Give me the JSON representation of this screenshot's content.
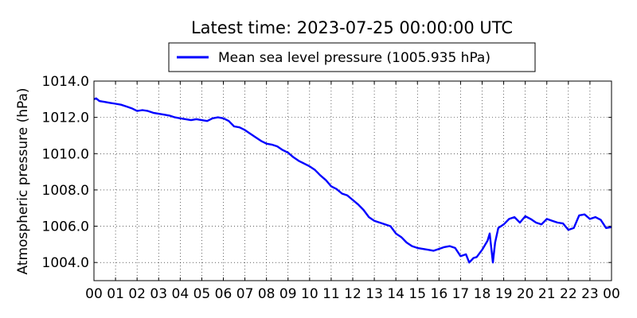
{
  "chart_data": {
    "type": "line",
    "title": "Latest time: 2023-07-25 00:00:00 UTC",
    "xlabel": "",
    "ylabel": "Atmospheric pressure (hPa)",
    "x_unit": "hour",
    "xlim": [
      0,
      24
    ],
    "ylim": [
      1003.0,
      1014.0
    ],
    "grid": true,
    "grid_style": "dotted",
    "legend_position": "top-center",
    "x_tick_labels": [
      "00",
      "01",
      "02",
      "03",
      "04",
      "05",
      "06",
      "07",
      "08",
      "09",
      "10",
      "11",
      "12",
      "13",
      "14",
      "15",
      "16",
      "17",
      "18",
      "19",
      "20",
      "21",
      "22",
      "23",
      "00"
    ],
    "y_ticks": [
      1004.0,
      1006.0,
      1008.0,
      1010.0,
      1012.0,
      1014.0
    ],
    "y_tick_labels": [
      "1004.0",
      "1006.0",
      "1008.0",
      "1010.0",
      "1012.0",
      "1014.0"
    ],
    "series": [
      {
        "name": "Mean sea level pressure (1005.935 hPa)",
        "color": "#0000ff",
        "x": [
          0.0,
          0.1,
          0.25,
          0.5,
          0.75,
          1.0,
          1.25,
          1.5,
          1.75,
          2.0,
          2.25,
          2.5,
          2.75,
          3.0,
          3.25,
          3.5,
          3.75,
          4.0,
          4.25,
          4.5,
          4.75,
          5.0,
          5.25,
          5.5,
          5.75,
          6.0,
          6.25,
          6.5,
          6.75,
          7.0,
          7.25,
          7.5,
          7.75,
          8.0,
          8.25,
          8.5,
          8.75,
          9.0,
          9.25,
          9.5,
          9.75,
          10.0,
          10.25,
          10.5,
          10.75,
          11.0,
          11.25,
          11.5,
          11.75,
          12.0,
          12.25,
          12.5,
          12.75,
          13.0,
          13.25,
          13.5,
          13.75,
          14.0,
          14.25,
          14.5,
          14.75,
          15.0,
          15.25,
          15.5,
          15.75,
          16.0,
          16.25,
          16.5,
          16.75,
          17.0,
          17.25,
          17.4,
          17.6,
          17.75,
          18.0,
          18.25,
          18.35,
          18.5,
          18.6,
          18.75,
          19.0,
          19.25,
          19.5,
          19.75,
          20.0,
          20.25,
          20.5,
          20.75,
          21.0,
          21.25,
          21.5,
          21.75,
          22.0,
          22.25,
          22.5,
          22.75,
          23.0,
          23.25,
          23.5,
          23.75,
          24.0
        ],
        "y": [
          1013.0,
          1013.05,
          1012.9,
          1012.85,
          1012.8,
          1012.75,
          1012.7,
          1012.6,
          1012.5,
          1012.35,
          1012.4,
          1012.35,
          1012.25,
          1012.2,
          1012.15,
          1012.1,
          1012.0,
          1011.95,
          1011.9,
          1011.85,
          1011.9,
          1011.85,
          1011.8,
          1011.95,
          1012.0,
          1011.95,
          1011.8,
          1011.5,
          1011.45,
          1011.3,
          1011.1,
          1010.9,
          1010.7,
          1010.55,
          1010.5,
          1010.4,
          1010.2,
          1010.05,
          1009.8,
          1009.6,
          1009.45,
          1009.3,
          1009.1,
          1008.8,
          1008.55,
          1008.2,
          1008.05,
          1007.8,
          1007.7,
          1007.45,
          1007.2,
          1006.9,
          1006.5,
          1006.3,
          1006.2,
          1006.1,
          1006.0,
          1005.6,
          1005.4,
          1005.1,
          1004.9,
          1004.8,
          1004.75,
          1004.7,
          1004.65,
          1004.75,
          1004.85,
          1004.9,
          1004.8,
          1004.35,
          1004.45,
          1004.0,
          1004.25,
          1004.3,
          1004.7,
          1005.2,
          1005.6,
          1004.0,
          1005.1,
          1005.9,
          1006.1,
          1006.4,
          1006.5,
          1006.2,
          1006.55,
          1006.4,
          1006.2,
          1006.1,
          1006.4,
          1006.3,
          1006.2,
          1006.15,
          1005.8,
          1005.9,
          1006.6,
          1006.65,
          1006.4,
          1006.5,
          1006.35,
          1005.9,
          1005.95
        ]
      }
    ]
  }
}
